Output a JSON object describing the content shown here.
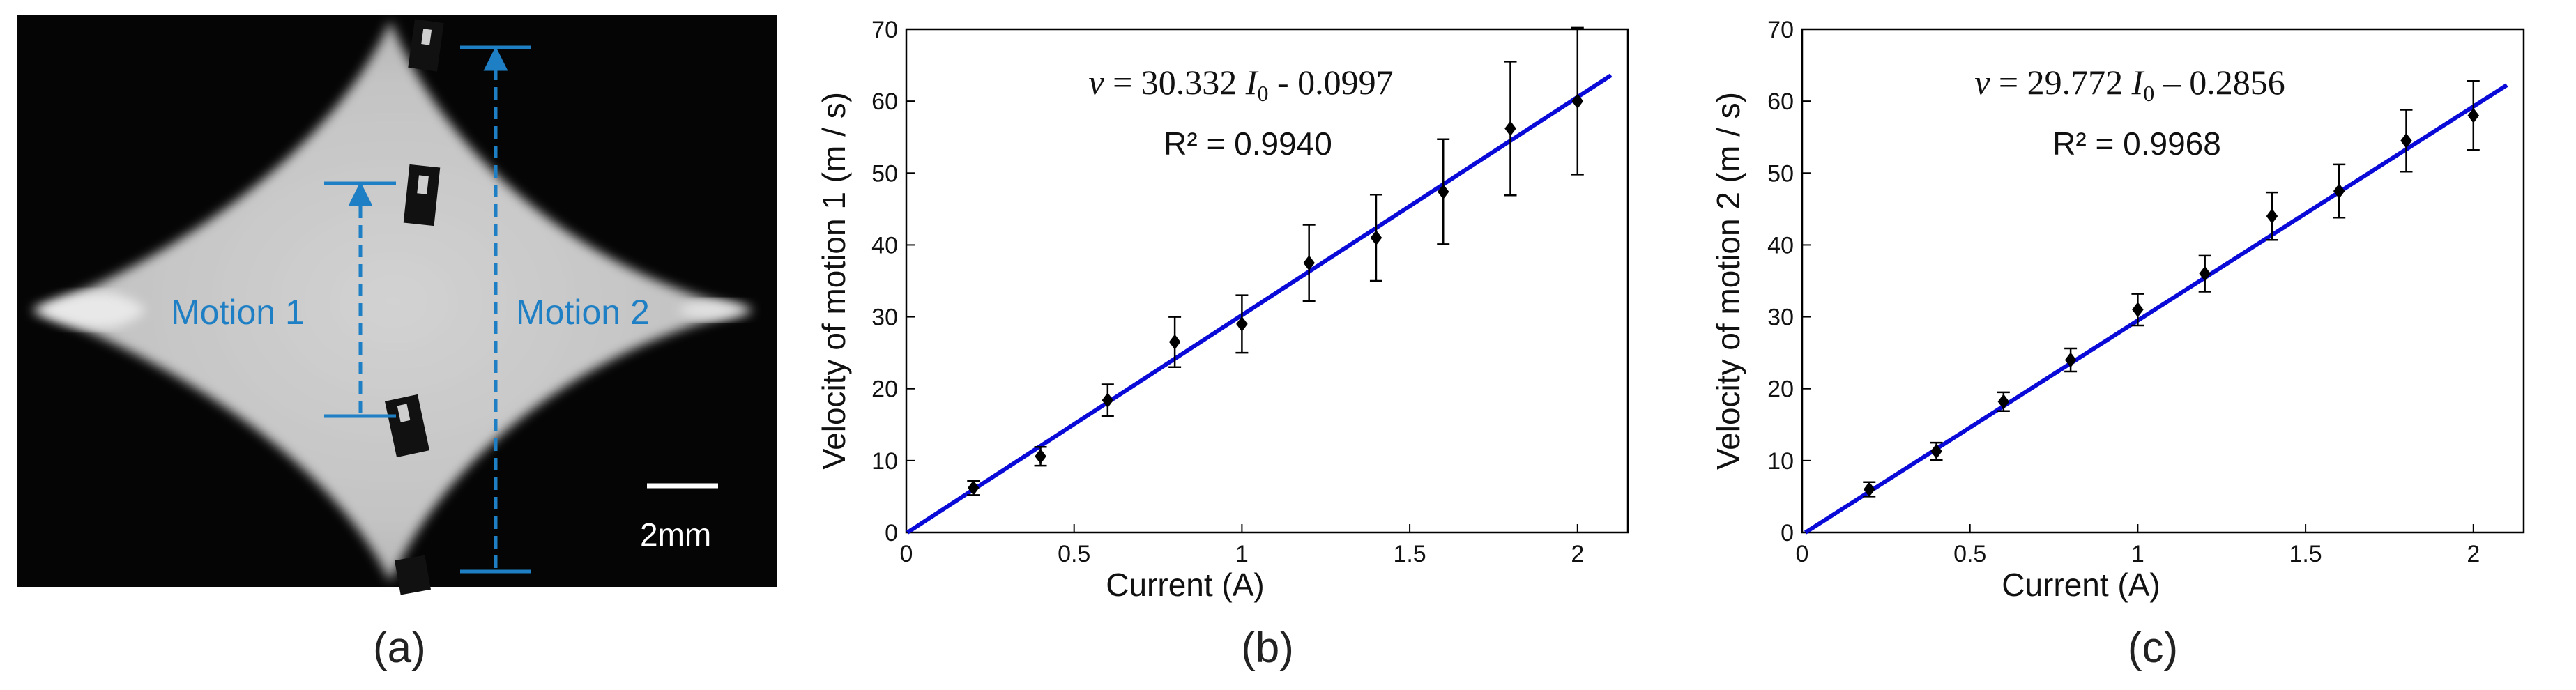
{
  "panel_a": {
    "label": "(a)",
    "motion1_label": "Motion 1",
    "motion2_label": "Motion 2",
    "scale_label": "2mm",
    "annotation_color": "#1e7fc4"
  },
  "panel_b": {
    "label": "(b)"
  },
  "panel_c": {
    "label": "(c)"
  },
  "chart_data": [
    {
      "type": "scatter",
      "panel": "(b)",
      "xlabel": "Current (A)",
      "ylabel": "Velocity of motion 1 (m / s)",
      "xlim": [
        0,
        2.15
      ],
      "ylim": [
        0,
        70
      ],
      "xticks": [
        0,
        0.5,
        1,
        1.5,
        2
      ],
      "xtick_labels": [
        "0",
        "0.5",
        "1",
        "1.5",
        "2"
      ],
      "yticks": [
        0,
        10,
        20,
        30,
        40,
        50,
        60,
        70
      ],
      "ytick_labels": [
        "0",
        "10",
        "20",
        "30",
        "40",
        "50",
        "60",
        "70"
      ],
      "grid": false,
      "equation": "v = 30.332 I0 - 0.0997",
      "equation_parts": {
        "var": "v",
        "mid": " = 30.332 ",
        "sym": "I",
        "sub": "0",
        "tail": " - 0.0997"
      },
      "r2_text": "R² = 0.9940",
      "fit": {
        "slope": 30.332,
        "intercept": -0.0997,
        "x_range": [
          0,
          2.1
        ],
        "color": "#0a0ad8"
      },
      "points": {
        "x": [
          0.2,
          0.4,
          0.6,
          0.8,
          1.0,
          1.2,
          1.4,
          1.6,
          1.8,
          2.0
        ],
        "y": [
          6.2,
          10.6,
          18.4,
          26.5,
          29.0,
          37.5,
          41.0,
          47.4,
          56.2,
          60.0
        ],
        "err": [
          1.0,
          1.3,
          2.2,
          3.5,
          4.0,
          5.3,
          6.0,
          7.3,
          9.3,
          10.2
        ]
      }
    },
    {
      "type": "scatter",
      "panel": "(c)",
      "xlabel": "Current (A)",
      "ylabel": "Velocity of motion 2 (m / s)",
      "xlim": [
        0,
        2.15
      ],
      "ylim": [
        0,
        70
      ],
      "xticks": [
        0,
        0.5,
        1,
        1.5,
        2
      ],
      "xtick_labels": [
        "0",
        "0.5",
        "1",
        "1.5",
        "2"
      ],
      "yticks": [
        0,
        10,
        20,
        30,
        40,
        50,
        60,
        70
      ],
      "ytick_labels": [
        "0",
        "10",
        "20",
        "30",
        "40",
        "50",
        "60",
        "70"
      ],
      "grid": false,
      "equation": "v = 29.772 I0 – 0.2856",
      "equation_parts": {
        "var": "v",
        "mid": " = 29.772 ",
        "sym": "I",
        "sub": "0",
        "tail": " – 0.2856"
      },
      "r2_text": "R² = 0.9968",
      "fit": {
        "slope": 29.772,
        "intercept": -0.2856,
        "x_range": [
          0,
          2.1
        ],
        "color": "#0a0ad8"
      },
      "points": {
        "x": [
          0.2,
          0.4,
          0.6,
          0.8,
          1.0,
          1.2,
          1.4,
          1.6,
          1.8,
          2.0
        ],
        "y": [
          6.0,
          11.3,
          18.2,
          24.0,
          31.0,
          36.0,
          44.0,
          47.5,
          54.5,
          58.0
        ],
        "err": [
          1.0,
          1.2,
          1.3,
          1.6,
          2.2,
          2.5,
          3.3,
          3.7,
          4.3,
          4.8
        ]
      }
    }
  ]
}
